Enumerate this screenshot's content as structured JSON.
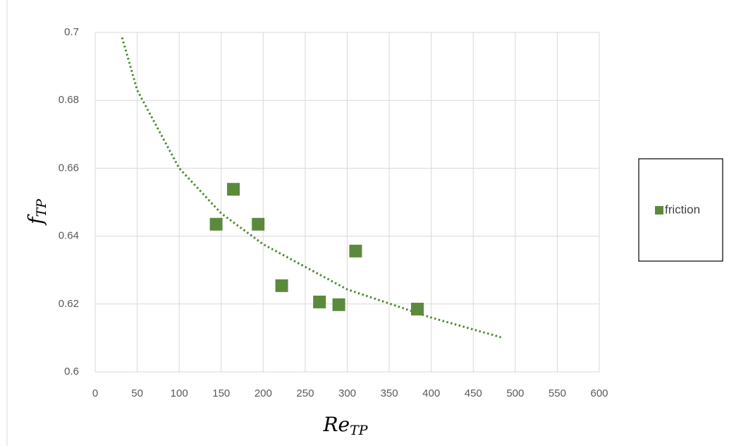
{
  "chart_data": {
    "type": "scatter",
    "x_label": "Re",
    "x_label_sub": "TP",
    "y_label": "f",
    "y_label_sub": "TP",
    "series": [
      {
        "name": "friction",
        "color": "#5b8a3c",
        "x": [
          144,
          164.5,
          194,
          222,
          267,
          290,
          310,
          383.5
        ],
        "values": [
          0.6435,
          0.6538,
          0.6435,
          0.6254,
          0.6206,
          0.6198,
          0.6356,
          0.6185
        ]
      }
    ],
    "trendline": {
      "color": "#4e8a2e",
      "x": [
        32,
        50,
        100,
        150,
        200,
        300,
        400,
        483
      ],
      "values": [
        0.6985,
        0.683,
        0.66,
        0.6467,
        0.6376,
        0.6243,
        0.616,
        0.6102
      ]
    },
    "xlim": [
      0,
      600
    ],
    "xticks": [
      0,
      50,
      100,
      150,
      200,
      250,
      300,
      350,
      400,
      450,
      500,
      550,
      600
    ],
    "ylim": [
      0.6,
      0.7
    ],
    "yticks": [
      0.6,
      0.62,
      0.64,
      0.66,
      0.68,
      0.7
    ],
    "grid": true,
    "legend": "right"
  }
}
